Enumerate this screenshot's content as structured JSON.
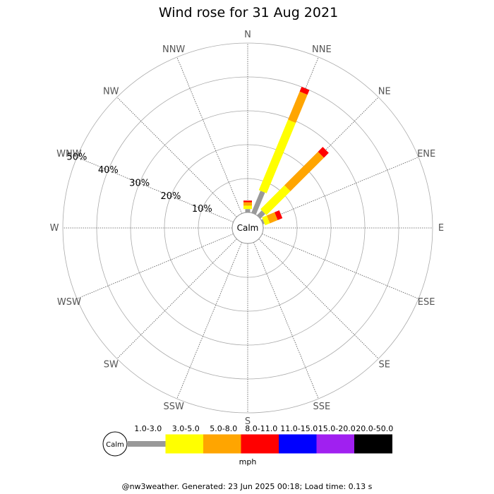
{
  "chart_data": {
    "type": "windrose",
    "title": "Wind rose for 31 Aug 2021",
    "directions": [
      "N",
      "NNE",
      "NE",
      "ENE",
      "E",
      "ESE",
      "SE",
      "SSE",
      "S",
      "SSW",
      "SW",
      "WSW",
      "W",
      "WNW",
      "NW",
      "NNW"
    ],
    "radial_ticks": [
      10,
      20,
      30,
      40,
      50
    ],
    "radial_tick_labels": [
      "10%",
      "20%",
      "30%",
      "40%",
      "50%"
    ],
    "radial_max": 50,
    "radial_unit": "%",
    "calm_label": "Calm",
    "speed_bins": [
      {
        "range": "1.0-3.0",
        "color": "#999999"
      },
      {
        "range": "3.0-5.0",
        "color": "#ffff00"
      },
      {
        "range": "5.0-8.0",
        "color": "#ffa500"
      },
      {
        "range": "8.0-11.0",
        "color": "#ff0000"
      },
      {
        "range": "11.0-15.0",
        "color": "#0000ff"
      },
      {
        "range": "15.0-20.0",
        "color": "#a020f0"
      },
      {
        "range": "20.0-50.0",
        "color": "#000000"
      }
    ],
    "speed_unit": "mph",
    "segments": [
      {
        "direction": "N",
        "values": [
          1.0,
          1.0,
          1.0,
          0.5,
          0,
          0,
          0
        ]
      },
      {
        "direction": "NNE",
        "values": [
          7.0,
          22.5,
          9.0,
          1.5,
          0,
          0,
          0
        ]
      },
      {
        "direction": "NE",
        "values": [
          2.0,
          10.0,
          14.0,
          2.0,
          0,
          0,
          0
        ]
      },
      {
        "direction": "ENE",
        "values": [
          0.5,
          1.5,
          2.5,
          1.5,
          0,
          0,
          0
        ]
      }
    ]
  },
  "footer": "@nw3weather. Generated: 23 Jun 2025 00:18; Load time: 0.13 s"
}
